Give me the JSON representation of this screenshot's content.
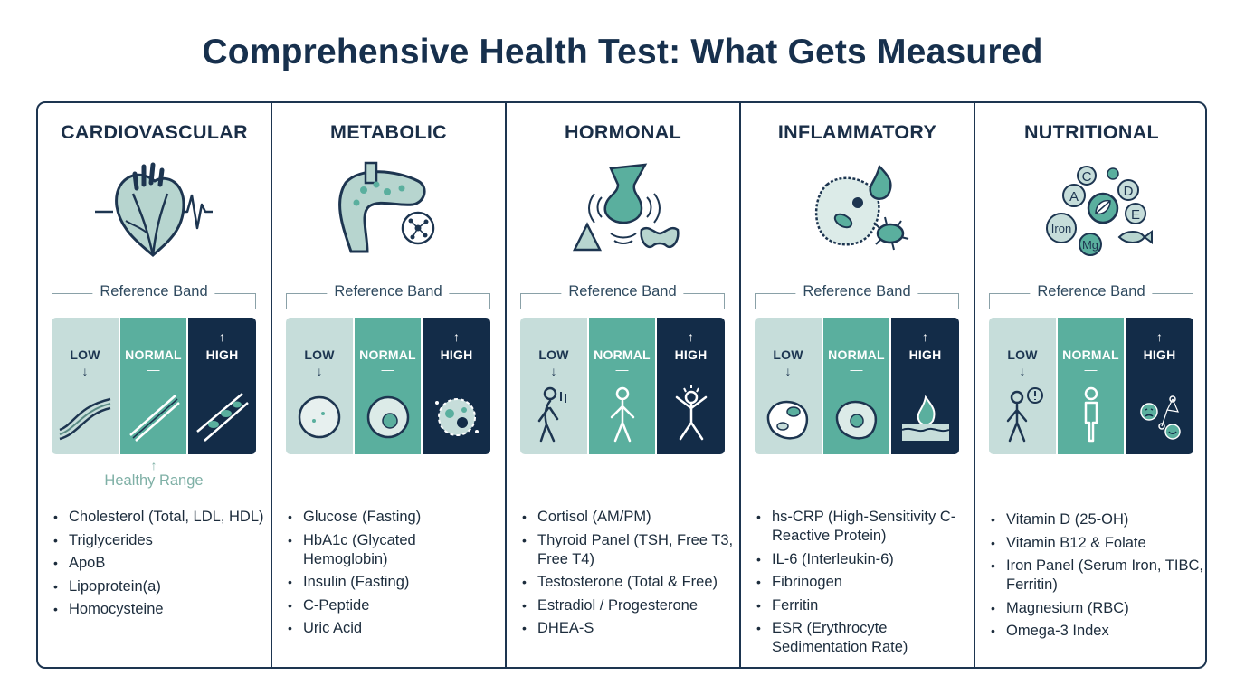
{
  "title": "Comprehensive Health Test: What Gets Measured",
  "reference_band_label": "Reference Band",
  "healthy_range_label": "Healthy Range",
  "segments": {
    "low": "LOW",
    "normal": "NORMAL",
    "high": "HIGH",
    "low_arrow": "↓",
    "normal_mark": "—",
    "high_arrow": "↑",
    "healthy_arrow": "↑"
  },
  "colors": {
    "navy": "#132c48",
    "teal": "#5aaf9e",
    "pale_teal": "#c6ddda",
    "healthy_text": "#7fb0a6"
  },
  "categories": [
    {
      "name": "CARDIOVASCULAR",
      "icon": "heart-icon",
      "tests": [
        "Cholesterol (Total, LDL, HDL)",
        "Triglycerides",
        "ApoB",
        "Lipoprotein(a)",
        "Homocysteine"
      ]
    },
    {
      "name": "METABOLIC",
      "icon": "pancreas-icon",
      "tests": [
        "Glucose (Fasting)",
        "HbA1c (Glycated Hemoglobin)",
        "Insulin (Fasting)",
        "C-Peptide",
        "Uric Acid"
      ]
    },
    {
      "name": "HORMONAL",
      "icon": "glands-icon",
      "tests": [
        "Cortisol (AM/PM)",
        "Thyroid Panel (TSH, Free T3, Free T4)",
        "Testosterone (Total & Free)",
        "Estradiol / Progesterone",
        "DHEA-S"
      ]
    },
    {
      "name": "INFLAMMATORY",
      "icon": "inflamed-cell-icon",
      "tests": [
        "hs-CRP (High-Sensitivity C-Reactive Protein)",
        "IL-6 (Interleukin-6)",
        "Fibrinogen",
        "Ferritin",
        "ESR (Erythrocyte Sedimentation Rate)"
      ]
    },
    {
      "name": "NUTRITIONAL",
      "icon": "nutrients-icon",
      "icon_labels": [
        "C",
        "A",
        "D",
        "E",
        "Iron",
        "Mg"
      ],
      "tests": [
        "Vitamin D (25-OH)",
        "Vitamin B12 & Folate",
        "Iron Panel (Serum Iron, TIBC, Ferritin)",
        "Magnesium (RBC)",
        "Omega-3 Index"
      ]
    }
  ]
}
